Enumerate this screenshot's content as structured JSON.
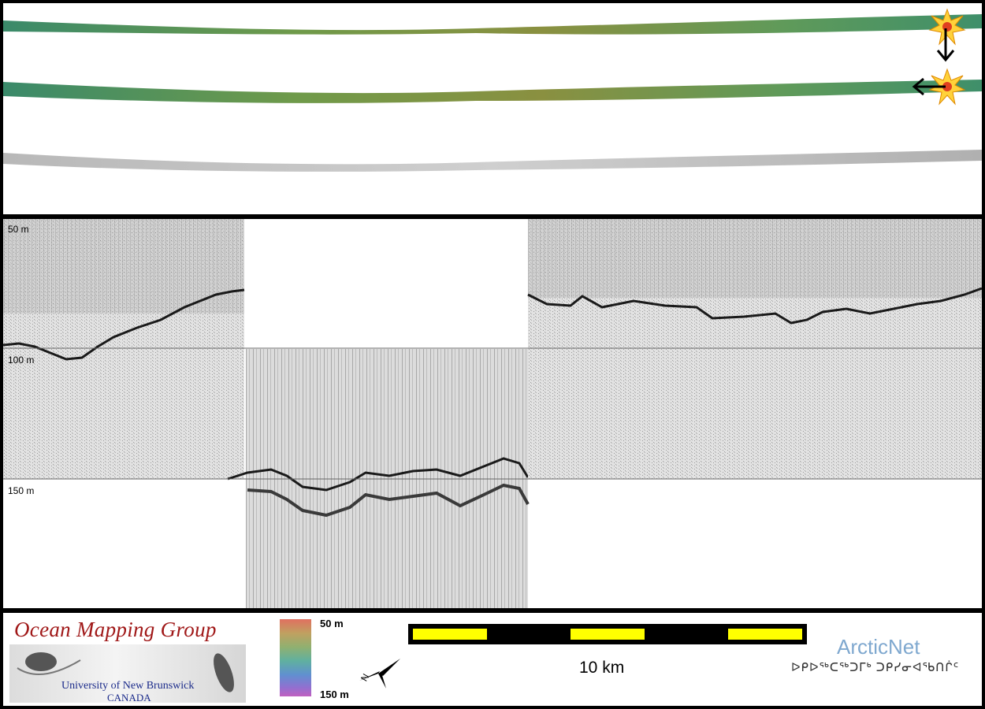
{
  "echogram": {
    "depth_labels": [
      "50 m",
      "100 m",
      "150 m"
    ]
  },
  "legend": {
    "omg_title": "Ocean Mapping Group",
    "omg_university": "University of New Brunswick",
    "omg_country": "CANADA",
    "colorbar_top": "50 m",
    "colorbar_bottom": "150 m",
    "scale_label": "10 km",
    "north_label": "N",
    "arcticnet_title": "ArcticNet",
    "arcticnet_syllabics": "ᐅᑭᐅᖅᑕᖅᑐᒥᒃ ᑐᑭᓯᓂᐊᖃᑎᒌᑦ"
  },
  "colors": {
    "swath_green": "#3f8f5a",
    "swath_olive": "#8a8f3c",
    "scale_yellow": "#ffff00",
    "omg_red": "#a01818",
    "arcticnet_blue": "#7fa8cf"
  }
}
